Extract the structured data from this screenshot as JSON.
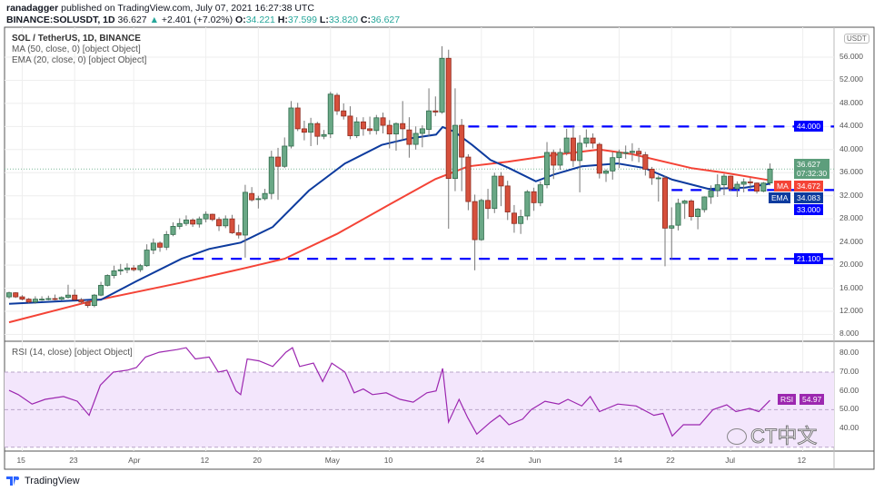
{
  "header": {
    "author": "ranadagger",
    "published": "published on TradingView.com, July 07, 2021 16:27:38 UTC",
    "symbol": "BINANCE:SOLUSDT, 1D",
    "last": "36.627",
    "change": "+2.401 (+7.02%)",
    "o_label": "O:",
    "o": "34.221",
    "h_label": "H:",
    "h": "37.599",
    "l_label": "L:",
    "l": "33.820",
    "c_label": "C:",
    "c": "36.627"
  },
  "legend": {
    "title": "SOL / TetherUS, 1D, BINANCE",
    "ma": "MA (50, close, 0) [object Object]",
    "ema": "EMA (20, close, 0) [object Object]",
    "rsi": "RSI (14, close) [object Object]"
  },
  "currency_badge": "USDT",
  "badges": {
    "resistance": "44.000",
    "price": "36.627",
    "countdown": "07:32:30",
    "ma_label": "MA",
    "ma_value": "34.672",
    "ema_label": "EMA",
    "ema_value": "34.083",
    "support1": "33.000",
    "support2": "21.100",
    "rsi_label": "RSI",
    "rsi_value": "54.97"
  },
  "colors": {
    "up": "#26a69a",
    "down": "#ef5350",
    "ma": "#f44336",
    "ema": "#0d3b9e",
    "level": "#0000ff",
    "rsi": "#9c27b0"
  },
  "footer": {
    "brand": "TradingView"
  },
  "watermark": "CT中文",
  "chart_data": {
    "type": "candlestick",
    "title": "SOL / TetherUS, 1D, BINANCE",
    "price_ticks": [
      "8.000",
      "12.000",
      "16.000",
      "20.000",
      "24.000",
      "28.000",
      "32.000",
      "36.000",
      "40.000",
      "44.000",
      "48.000",
      "52.000",
      "56.000"
    ],
    "price_tick_values": [
      8,
      12,
      16,
      20,
      24,
      28,
      32,
      36,
      40,
      44,
      48,
      52,
      56
    ],
    "rsi_ticks": [
      "40.00",
      "50.00",
      "60.00",
      "70.00",
      "80.00"
    ],
    "rsi_tick_values": [
      40,
      50,
      60,
      70,
      80
    ],
    "x_ticks": [
      {
        "label": "15",
        "day": 2
      },
      {
        "label": "23",
        "day": 10
      },
      {
        "label": "Apr",
        "day": 19
      },
      {
        "label": "12",
        "day": 30
      },
      {
        "label": "20",
        "day": 38
      },
      {
        "label": "May",
        "day": 49
      },
      {
        "label": "10",
        "day": 58
      },
      {
        "label": "24",
        "day": 72
      },
      {
        "label": "Jun",
        "day": 80
      },
      {
        "label": "14",
        "day": 93
      },
      {
        "label": "22",
        "day": 101
      },
      {
        "label": "Jul",
        "day": 110
      },
      {
        "label": "12",
        "day": 121
      }
    ],
    "start_date": "2021-03-13",
    "levels": [
      {
        "value": 44,
        "from_day": 70
      },
      {
        "value": 33,
        "from_day": 101
      },
      {
        "value": 21.1,
        "from_day": 28
      }
    ],
    "ohlc": [
      [
        14.5,
        15.4,
        14.2,
        15.2
      ],
      [
        15.2,
        15.3,
        14.3,
        14.5
      ],
      [
        14.5,
        14.8,
        13.9,
        14.1
      ],
      [
        14.1,
        14.3,
        13.4,
        13.6
      ],
      [
        13.6,
        14.6,
        13.3,
        14.1
      ],
      [
        14.1,
        14.6,
        13.8,
        14.1
      ],
      [
        14.1,
        14.7,
        13.9,
        14.2
      ],
      [
        14.2,
        14.9,
        13.9,
        14.1
      ],
      [
        14.1,
        14.6,
        13.9,
        14.4
      ],
      [
        14.4,
        16.6,
        14.2,
        14.8
      ],
      [
        14.8,
        15.8,
        13.9,
        14.0
      ],
      [
        14.0,
        14.3,
        13.3,
        13.6
      ],
      [
        13.6,
        13.8,
        12.6,
        13.0
      ],
      [
        13.0,
        15.0,
        12.7,
        14.8
      ],
      [
        14.8,
        17.1,
        14.6,
        16.5
      ],
      [
        16.5,
        18.4,
        16.3,
        18.2
      ],
      [
        18.2,
        19.9,
        17.7,
        19.0
      ],
      [
        19.0,
        20.2,
        18.3,
        19.2
      ],
      [
        19.2,
        20.3,
        18.6,
        19.5
      ],
      [
        19.5,
        20.0,
        18.9,
        19.2
      ],
      [
        19.2,
        20.2,
        18.8,
        19.9
      ],
      [
        19.9,
        23.6,
        19.7,
        22.6
      ],
      [
        22.6,
        24.6,
        21.9,
        23.8
      ],
      [
        23.8,
        24.1,
        22.3,
        23.1
      ],
      [
        23.1,
        25.9,
        22.6,
        25.3
      ],
      [
        25.3,
        27.4,
        25.0,
        26.7
      ],
      [
        26.7,
        28.1,
        26.2,
        27.2
      ],
      [
        27.2,
        28.6,
        26.8,
        27.8
      ],
      [
        27.8,
        28.1,
        26.6,
        27.1
      ],
      [
        27.1,
        28.4,
        26.5,
        28.0
      ],
      [
        28.0,
        29.3,
        27.4,
        28.8
      ],
      [
        28.8,
        28.9,
        27.6,
        27.9
      ],
      [
        27.9,
        28.3,
        25.9,
        26.8
      ],
      [
        26.8,
        28.6,
        26.4,
        28.0
      ],
      [
        28.0,
        28.7,
        25.4,
        25.6
      ],
      [
        25.6,
        27.0,
        24.6,
        25.2
      ],
      [
        25.2,
        33.9,
        21.3,
        32.6
      ],
      [
        32.4,
        33.5,
        31.0,
        31.3
      ],
      [
        31.4,
        32.0,
        29.8,
        31.5
      ],
      [
        31.5,
        33.2,
        31.2,
        32.4
      ],
      [
        32.4,
        39.8,
        31.4,
        38.7
      ],
      [
        38.7,
        40.3,
        31.3,
        37.1
      ],
      [
        37.1,
        42.1,
        36.8,
        40.6
      ],
      [
        40.6,
        48.4,
        40.2,
        47.2
      ],
      [
        47.2,
        48.1,
        43.2,
        43.6
      ],
      [
        43.6,
        45.0,
        41.6,
        43.0
      ],
      [
        43.0,
        45.5,
        40.6,
        44.5
      ],
      [
        44.5,
        44.8,
        40.8,
        42.3
      ],
      [
        42.3,
        43.4,
        41.8,
        42.6
      ],
      [
        42.7,
        50.0,
        42.0,
        49.6
      ],
      [
        49.4,
        49.8,
        46.0,
        46.7
      ],
      [
        46.7,
        48.0,
        45.2,
        45.8
      ],
      [
        45.8,
        47.5,
        41.8,
        42.4
      ],
      [
        42.4,
        45.6,
        42.0,
        44.8
      ],
      [
        44.8,
        45.6,
        42.4,
        43.6
      ],
      [
        43.6,
        45.7,
        42.6,
        43.3
      ],
      [
        43.3,
        46.0,
        42.6,
        45.5
      ],
      [
        45.5,
        46.4,
        42.8,
        44.2
      ],
      [
        44.2,
        45.1,
        40.2,
        42.7
      ],
      [
        42.7,
        44.7,
        39.8,
        44.5
      ],
      [
        44.5,
        48.4,
        41.7,
        43.6
      ],
      [
        43.4,
        45.6,
        38.6,
        40.9
      ],
      [
        40.9,
        44.0,
        40.0,
        42.8
      ],
      [
        42.8,
        44.2,
        40.4,
        43.6
      ],
      [
        43.5,
        50.6,
        42.3,
        46.7
      ],
      [
        46.7,
        49.2,
        45.8,
        46.5
      ],
      [
        46.5,
        57.9,
        46.2,
        55.8
      ],
      [
        55.8,
        57.3,
        26.3,
        35.0
      ],
      [
        35.0,
        50.6,
        32.8,
        44.2
      ],
      [
        44.2,
        45.3,
        32.8,
        38.7
      ],
      [
        38.7,
        39.2,
        29.5,
        31.0
      ],
      [
        31.0,
        32.2,
        19.1,
        24.4
      ],
      [
        24.4,
        31.5,
        24.2,
        31.2
      ],
      [
        31.2,
        33.2,
        28.0,
        29.8
      ],
      [
        29.8,
        36.0,
        29.0,
        35.4
      ],
      [
        35.4,
        36.1,
        30.2,
        33.7
      ],
      [
        33.7,
        34.6,
        27.8,
        29.2
      ],
      [
        29.0,
        30.4,
        25.6,
        27.2
      ],
      [
        27.2,
        29.6,
        25.4,
        28.4
      ],
      [
        28.5,
        33.0,
        27.8,
        32.7
      ],
      [
        32.7,
        33.4,
        29.4,
        30.8
      ],
      [
        30.8,
        34.5,
        30.2,
        33.9
      ],
      [
        33.9,
        41.3,
        33.3,
        39.5
      ],
      [
        39.5,
        40.0,
        34.9,
        37.3
      ],
      [
        37.3,
        40.2,
        36.5,
        39.5
      ],
      [
        39.5,
        43.6,
        39.0,
        42.0
      ],
      [
        42.0,
        44.0,
        37.0,
        38.1
      ],
      [
        38.1,
        42.5,
        32.6,
        41.1
      ],
      [
        41.1,
        43.5,
        40.4,
        42.0
      ],
      [
        42.0,
        42.8,
        40.2,
        41.1
      ],
      [
        40.9,
        41.2,
        35.0,
        35.9
      ],
      [
        35.9,
        36.6,
        34.4,
        36.3
      ],
      [
        36.3,
        39.6,
        34.8,
        38.6
      ],
      [
        38.6,
        40.0,
        36.8,
        39.5
      ],
      [
        39.5,
        40.7,
        38.4,
        39.5
      ],
      [
        39.5,
        41.1,
        38.0,
        39.7
      ],
      [
        39.7,
        40.3,
        37.8,
        39.2
      ],
      [
        39.1,
        39.6,
        35.5,
        36.6
      ],
      [
        36.6,
        37.0,
        33.9,
        35.1
      ],
      [
        35.1,
        35.5,
        31.0,
        35.1
      ],
      [
        35.1,
        35.5,
        19.8,
        26.4
      ],
      [
        26.4,
        30.0,
        21.0,
        26.8
      ],
      [
        26.9,
        31.5,
        26.0,
        30.7
      ],
      [
        30.7,
        31.3,
        28.0,
        31.1
      ],
      [
        31.1,
        31.4,
        27.7,
        28.4
      ],
      [
        28.4,
        29.9,
        26.2,
        29.7
      ],
      [
        29.6,
        31.9,
        29.1,
        31.8
      ],
      [
        31.8,
        33.8,
        30.6,
        32.9
      ],
      [
        32.9,
        35.7,
        31.8,
        33.9
      ],
      [
        33.9,
        35.8,
        32.1,
        35.4
      ],
      [
        35.4,
        35.5,
        32.8,
        33.2
      ],
      [
        33.2,
        34.5,
        31.8,
        34.0
      ],
      [
        34.0,
        35.0,
        32.6,
        34.4
      ],
      [
        34.4,
        35.1,
        33.0,
        34.3
      ],
      [
        34.2,
        34.3,
        32.4,
        32.8
      ],
      [
        32.8,
        34.4,
        32.6,
        34.2
      ],
      [
        34.221,
        37.599,
        33.82,
        36.627
      ]
    ],
    "ma50": [
      [
        0,
        10.1
      ],
      [
        12,
        13.6
      ],
      [
        26,
        16.9
      ],
      [
        36,
        19.5
      ],
      [
        42,
        21.1
      ],
      [
        50,
        25.4
      ],
      [
        58,
        30.5
      ],
      [
        65,
        34.9
      ],
      [
        70,
        37.1
      ],
      [
        76,
        37.9
      ],
      [
        84,
        39.2
      ],
      [
        90,
        40.0
      ],
      [
        95,
        39.2
      ],
      [
        104,
        36.8
      ],
      [
        109,
        36.0
      ],
      [
        116,
        34.672
      ]
    ],
    "ema20": [
      [
        0,
        13.3
      ],
      [
        12.5,
        14.0
      ],
      [
        14,
        14.0
      ],
      [
        19.4,
        17.2
      ],
      [
        26.3,
        21.1
      ],
      [
        30.5,
        22.8
      ],
      [
        35.3,
        23.9
      ],
      [
        40.2,
        26.6
      ],
      [
        45.7,
        32.9
      ],
      [
        51.2,
        37.6
      ],
      [
        56.8,
        40.8
      ],
      [
        60.9,
        41.9
      ],
      [
        65.1,
        42.6
      ],
      [
        66.1,
        43.9
      ],
      [
        67.9,
        43.1
      ],
      [
        70.6,
        40.8
      ],
      [
        73.4,
        38.2
      ],
      [
        76.2,
        36.8
      ],
      [
        80.3,
        34.5
      ],
      [
        83.1,
        35.7
      ],
      [
        87.3,
        37.1
      ],
      [
        92.8,
        37.6
      ],
      [
        96.9,
        36.8
      ],
      [
        101.1,
        34.8
      ],
      [
        106.6,
        33.2
      ],
      [
        112.2,
        33.4
      ],
      [
        116,
        34.083
      ]
    ],
    "rsi": [
      [
        0,
        60.3
      ],
      [
        1.4,
        58
      ],
      [
        3.5,
        53
      ],
      [
        5.5,
        55.5
      ],
      [
        8.3,
        57
      ],
      [
        10.4,
        54.5
      ],
      [
        12.2,
        47
      ],
      [
        13.9,
        63
      ],
      [
        15.9,
        70
      ],
      [
        18,
        71
      ],
      [
        19.4,
        72.4
      ],
      [
        20.8,
        78
      ],
      [
        22.9,
        80.6
      ],
      [
        25.6,
        82
      ],
      [
        27,
        83
      ],
      [
        28.4,
        77
      ],
      [
        30.5,
        78
      ],
      [
        31.9,
        70
      ],
      [
        33.2,
        71
      ],
      [
        34.6,
        60
      ],
      [
        35.3,
        58
      ],
      [
        36.3,
        77
      ],
      [
        38.1,
        76
      ],
      [
        40.2,
        73
      ],
      [
        42.2,
        80.6
      ],
      [
        43.2,
        83
      ],
      [
        44.3,
        73
      ],
      [
        46.4,
        74.8
      ],
      [
        47.8,
        65
      ],
      [
        49.2,
        74.8
      ],
      [
        51.2,
        70
      ],
      [
        52.6,
        59
      ],
      [
        54,
        61
      ],
      [
        55.4,
        58
      ],
      [
        57.5,
        59
      ],
      [
        59.6,
        55.5
      ],
      [
        61.6,
        54
      ],
      [
        63.7,
        59
      ],
      [
        65.1,
        60
      ],
      [
        66.1,
        72
      ],
      [
        67,
        43.4
      ],
      [
        68.6,
        55.5
      ],
      [
        69.9,
        45.8
      ],
      [
        71.3,
        37
      ],
      [
        73.4,
        43.4
      ],
      [
        74.8,
        47
      ],
      [
        76.2,
        42
      ],
      [
        78.3,
        45
      ],
      [
        79.6,
        50
      ],
      [
        81.7,
        54.5
      ],
      [
        83.8,
        53
      ],
      [
        85.2,
        55.5
      ],
      [
        87.3,
        52
      ],
      [
        88.6,
        57
      ],
      [
        90,
        49
      ],
      [
        92.8,
        53
      ],
      [
        95.6,
        52
      ],
      [
        98.3,
        47
      ],
      [
        99.7,
        48
      ],
      [
        101.1,
        36
      ],
      [
        102.8,
        42
      ],
      [
        105.3,
        42
      ],
      [
        107.3,
        50
      ],
      [
        109.4,
        52.6
      ],
      [
        110.8,
        49
      ],
      [
        112.9,
        50.7
      ],
      [
        114.3,
        49
      ],
      [
        116,
        54.97
      ]
    ]
  }
}
